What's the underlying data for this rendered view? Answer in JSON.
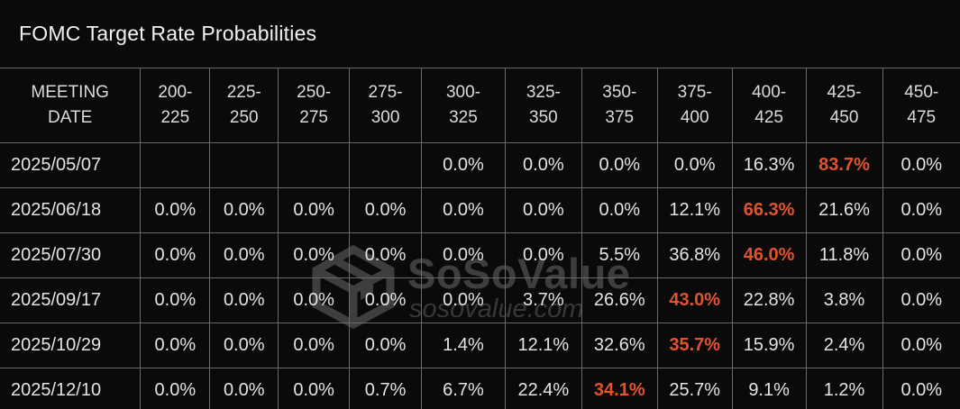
{
  "title": "FOMC Target Rate Probabilities",
  "colors": {
    "background": "#0a0a0a",
    "grid_line": "#6a6a6a",
    "text": "#e6e3e0",
    "highlight": "#e2532e",
    "watermark": "#3e3e3e"
  },
  "watermark": {
    "logo": "sosovalue-cube-logo-icon",
    "brand": "SoSoValue",
    "domain": "sosovalue.com"
  },
  "chart_data": {
    "type": "table",
    "title": "FOMC Target Rate Probabilities",
    "date_header": "MEETING DATE",
    "rate_headers": [
      "200-225",
      "225-250",
      "250-275",
      "275-300",
      "300-325",
      "325-350",
      "350-375",
      "375-400",
      "400-425",
      "425-450",
      "450-475"
    ],
    "rows": [
      {
        "date": "2025/05/07",
        "values": [
          "",
          "",
          "",
          "",
          "0.0%",
          "0.0%",
          "0.0%",
          "0.0%",
          "16.3%",
          "83.7%",
          "0.0%"
        ],
        "highlight_index": 9
      },
      {
        "date": "2025/06/18",
        "values": [
          "0.0%",
          "0.0%",
          "0.0%",
          "0.0%",
          "0.0%",
          "0.0%",
          "0.0%",
          "12.1%",
          "66.3%",
          "21.6%",
          "0.0%"
        ],
        "highlight_index": 8
      },
      {
        "date": "2025/07/30",
        "values": [
          "0.0%",
          "0.0%",
          "0.0%",
          "0.0%",
          "0.0%",
          "0.0%",
          "5.5%",
          "36.8%",
          "46.0%",
          "11.8%",
          "0.0%"
        ],
        "highlight_index": 8
      },
      {
        "date": "2025/09/17",
        "values": [
          "0.0%",
          "0.0%",
          "0.0%",
          "0.0%",
          "0.0%",
          "3.7%",
          "26.6%",
          "43.0%",
          "22.8%",
          "3.8%",
          "0.0%"
        ],
        "highlight_index": 7
      },
      {
        "date": "2025/10/29",
        "values": [
          "0.0%",
          "0.0%",
          "0.0%",
          "0.0%",
          "1.4%",
          "12.1%",
          "32.6%",
          "35.7%",
          "15.9%",
          "2.4%",
          "0.0%"
        ],
        "highlight_index": 7
      },
      {
        "date": "2025/12/10",
        "values": [
          "0.0%",
          "0.0%",
          "0.0%",
          "0.7%",
          "6.7%",
          "22.4%",
          "34.1%",
          "25.7%",
          "9.1%",
          "1.2%",
          "0.0%"
        ],
        "highlight_index": 6
      }
    ]
  }
}
